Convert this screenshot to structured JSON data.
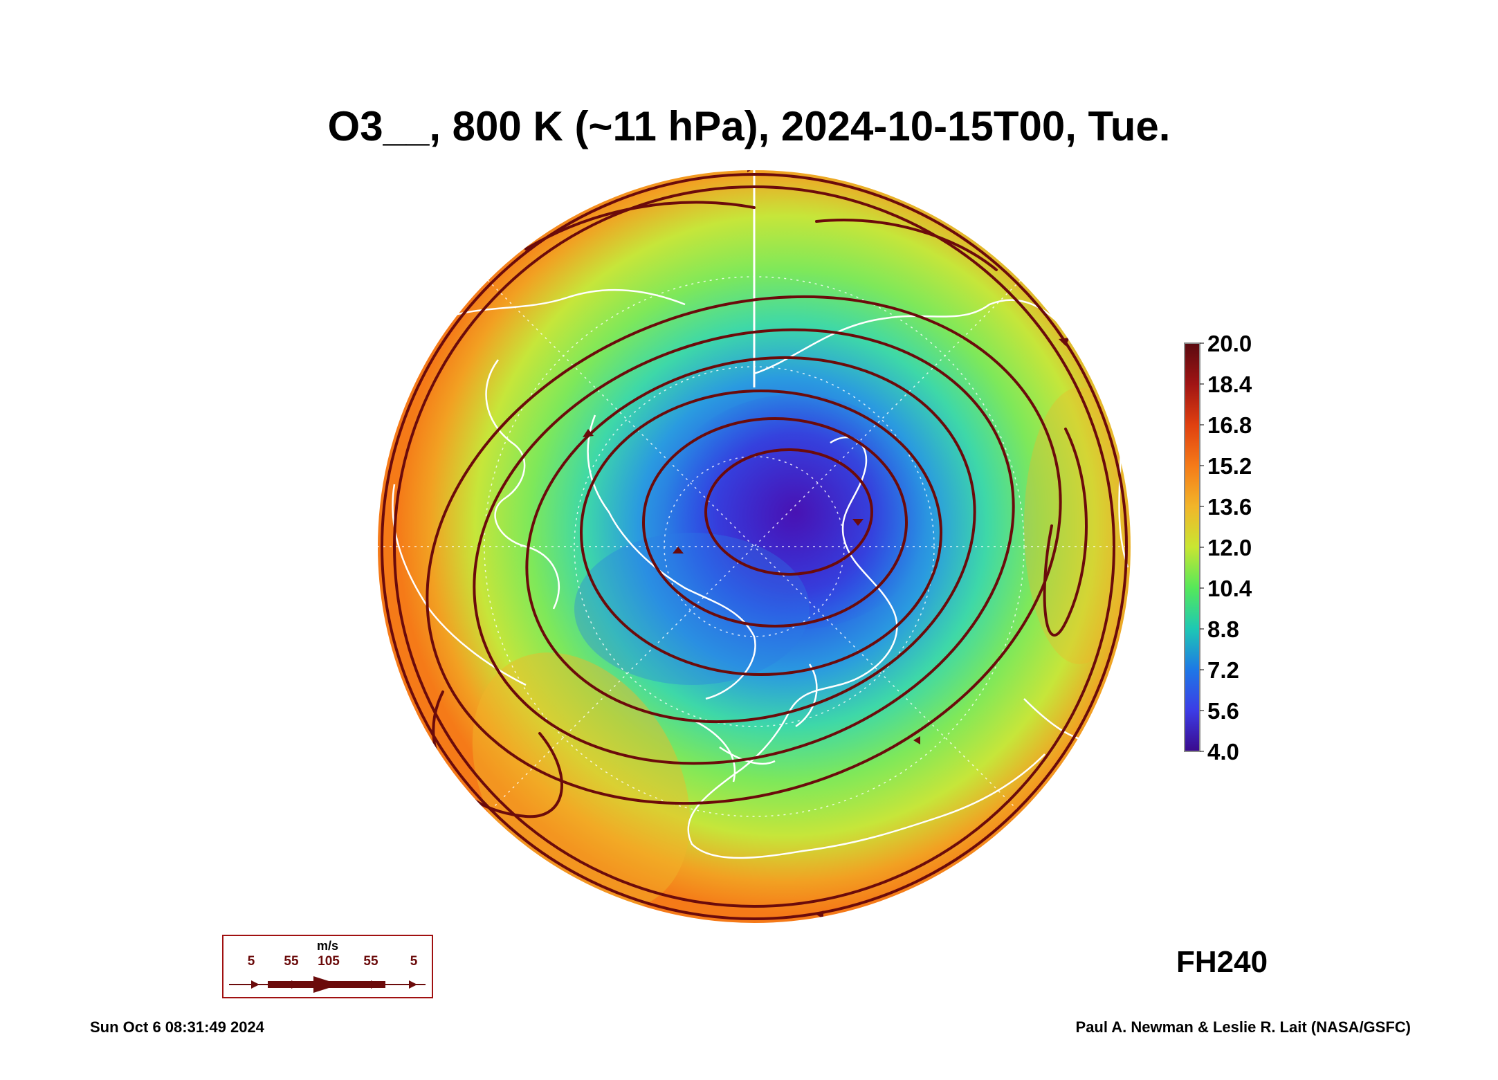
{
  "title": "O3__, 800 K (~11 hPa), 2024-10-15T00, Tue.",
  "forecast_hour": "FH240",
  "footer": {
    "timestamp": "Sun Oct  6 08:31:49 2024",
    "credit": "Paul A. Newman & Leslie R. Lait (NASA/GSFC)"
  },
  "colorbar": {
    "labels": [
      "20.0",
      "18.4",
      "16.8",
      "15.2",
      "13.6",
      "12.0",
      "10.4",
      "8.8",
      "7.2",
      "5.6",
      "4.0"
    ],
    "colors": [
      "#5a0a10",
      "#a01414",
      "#e04010",
      "#f57a18",
      "#f2b52a",
      "#c8e632",
      "#55e85a",
      "#1ec8b4",
      "#1e78e6",
      "#3c3ce6",
      "#3a0a8c"
    ]
  },
  "vector_legend": {
    "unit": "m/s",
    "values": [
      "5",
      "55",
      "105",
      "55",
      "5"
    ],
    "color": "#6b0b0b"
  },
  "map": {
    "projection": "polar stereographic, North Pole",
    "field_colors": {
      "low": "#3a20c8",
      "mid_low": "#2a8ae6",
      "mid": "#3ed8a8",
      "mid_high": "#a8e840",
      "high": "#f2a022",
      "edge": "#f57a18"
    },
    "coastline_color": "#ffffff",
    "streamline_color": "#6b0b0b"
  }
}
